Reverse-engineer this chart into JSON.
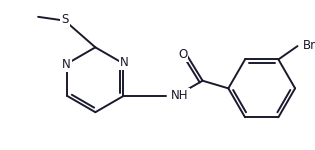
{
  "bg_color": "#ffffff",
  "line_color": "#1a1a2e",
  "line_width": 1.4,
  "font_size": 8.5,
  "figsize": [
    3.15,
    1.5
  ],
  "dpi": 100,
  "xlim": [
    0,
    315
  ],
  "ylim": [
    0,
    150
  ]
}
